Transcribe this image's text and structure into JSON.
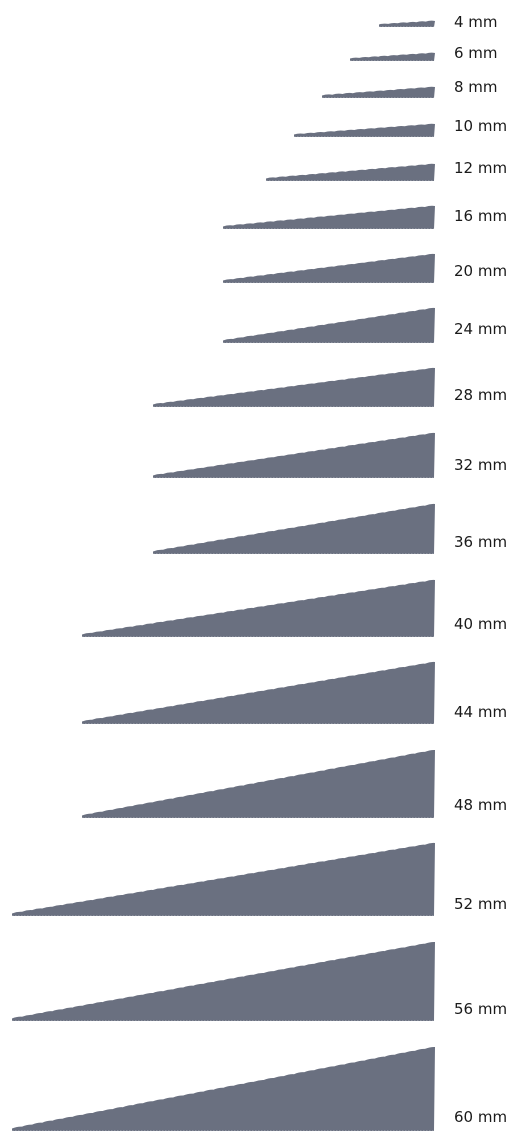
{
  "diagram": {
    "wedge_color": "#6a7080",
    "wedges": [
      {
        "label": "4 mm"
      },
      {
        "label": "6 mm"
      },
      {
        "label": "8 mm"
      },
      {
        "label": "10 mm"
      },
      {
        "label": "12 mm"
      },
      {
        "label": "16 mm"
      },
      {
        "label": "20 mm"
      },
      {
        "label": "24 mm"
      },
      {
        "label": "28 mm"
      },
      {
        "label": "32 mm"
      },
      {
        "label": "36 mm"
      },
      {
        "label": "40 mm"
      },
      {
        "label": "44 mm"
      },
      {
        "label": "48 mm"
      },
      {
        "label": "52 mm"
      },
      {
        "label": "56 mm"
      },
      {
        "label": "60 mm"
      }
    ]
  }
}
